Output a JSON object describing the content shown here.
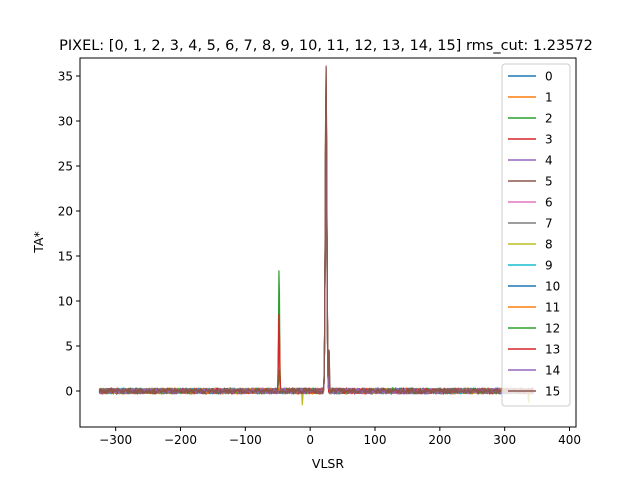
{
  "chart_data": {
    "type": "line",
    "title": "PIXEL: [0, 1, 2, 3, 4, 5, 6, 7, 8, 9, 10, 11, 12, 13, 14, 15]   rms_cut: 1.23572",
    "xlabel": "VLSR",
    "ylabel": "TA*",
    "xlim": [
      -355,
      410
    ],
    "ylim": [
      -4,
      37
    ],
    "x_ticks": [
      -300,
      -200,
      -100,
      0,
      100,
      200,
      300,
      400
    ],
    "y_ticks": [
      0,
      5,
      10,
      15,
      20,
      25,
      30,
      35
    ],
    "x_range": [
      -325,
      345
    ],
    "noise_amplitude": 0.35,
    "legend_location": "top-right",
    "grid": false,
    "series": [
      {
        "name": "0",
        "color": "#1f77b4",
        "features": [
          {
            "v": 24.5,
            "peak": 33.0,
            "width": 1.2
          }
        ]
      },
      {
        "name": "1",
        "color": "#ff7f0e",
        "features": [
          {
            "v": 24.5,
            "peak": 32.5,
            "width": 1.2
          }
        ]
      },
      {
        "name": "2",
        "color": "#2ca02c",
        "features": [
          {
            "v": 24.5,
            "peak": 34.0,
            "width": 1.2
          },
          {
            "v": -48,
            "peak": 14.0,
            "width": 0.8
          }
        ]
      },
      {
        "name": "3",
        "color": "#d62728",
        "features": [
          {
            "v": 24.5,
            "peak": 34.5,
            "width": 1.2
          },
          {
            "v": -48,
            "peak": 8.5,
            "width": 0.8
          }
        ]
      },
      {
        "name": "4",
        "color": "#9467bd",
        "features": [
          {
            "v": 24.5,
            "peak": 33.0,
            "width": 1.2
          }
        ]
      },
      {
        "name": "5",
        "color": "#8c564b",
        "features": [
          {
            "v": 24.5,
            "peak": 36.0,
            "width": 1.2
          },
          {
            "v": 29,
            "peak": 5.5,
            "width": 0.6
          }
        ]
      },
      {
        "name": "6",
        "color": "#e377c2",
        "features": [
          {
            "v": 24.5,
            "peak": 32.0,
            "width": 1.2
          }
        ]
      },
      {
        "name": "7",
        "color": "#7f7f7f",
        "features": [
          {
            "v": 24.5,
            "peak": 31.5,
            "width": 1.2
          }
        ]
      },
      {
        "name": "8",
        "color": "#bcbd22",
        "features": [
          {
            "v": 24.5,
            "peak": 31.0,
            "width": 1.2
          },
          {
            "v": -12,
            "peak": -1.6,
            "width": 0.5
          },
          {
            "v": 337,
            "peak": -1.8,
            "width": 0.5
          }
        ]
      },
      {
        "name": "9",
        "color": "#17becf",
        "features": [
          {
            "v": 24.5,
            "peak": 31.0,
            "width": 1.2
          }
        ]
      },
      {
        "name": "10",
        "color": "#1f77b4",
        "features": [
          {
            "v": 24.5,
            "peak": 32.0,
            "width": 1.2
          }
        ]
      },
      {
        "name": "11",
        "color": "#ff7f0e",
        "features": [
          {
            "v": 24.5,
            "peak": 32.0,
            "width": 1.2
          }
        ]
      },
      {
        "name": "12",
        "color": "#2ca02c",
        "features": [
          {
            "v": 24.5,
            "peak": 33.0,
            "width": 1.2
          },
          {
            "v": -48,
            "peak": 2.5,
            "width": 0.8
          }
        ]
      },
      {
        "name": "13",
        "color": "#d62728",
        "features": [
          {
            "v": 24.5,
            "peak": 33.5,
            "width": 1.2
          },
          {
            "v": -48,
            "peak": 8.0,
            "width": 0.8
          }
        ]
      },
      {
        "name": "14",
        "color": "#9467bd",
        "features": [
          {
            "v": 24.5,
            "peak": 32.0,
            "width": 1.2
          }
        ]
      },
      {
        "name": "15",
        "color": "#8c564b",
        "features": [
          {
            "v": 24.5,
            "peak": 36.2,
            "width": 1.2
          },
          {
            "v": 29,
            "peak": 5.3,
            "width": 0.6
          }
        ]
      }
    ]
  }
}
